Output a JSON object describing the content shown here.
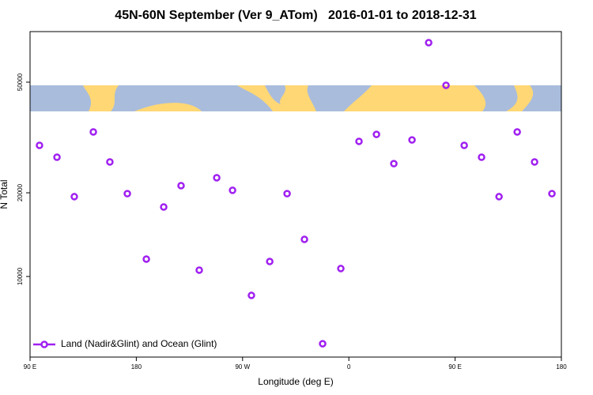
{
  "chart_data": {
    "type": "scatter",
    "title": "45N-60N September (Ver 9_ATom)   2016-01-01 to 2018-12-31",
    "x_label": "Longitude (deg E)",
    "y_label": "N Total",
    "y_log": true,
    "legend": "bottom left",
    "xlim": [
      90,
      540
    ],
    "ylim": [
      5130,
      76000
    ],
    "xticks": [
      {
        "value": 90,
        "label": "90 E"
      },
      {
        "value": 180,
        "label": "180"
      },
      {
        "value": 270,
        "label": "90 W"
      },
      {
        "value": 360,
        "label": "0"
      },
      {
        "value": 450,
        "label": "90 E"
      },
      {
        "value": 540,
        "label": "180"
      }
    ],
    "yticks": [
      10000,
      20000,
      50000
    ],
    "series": [
      {
        "name": "Land (Nadir&Glint) and Ocean (Glint)",
        "color": "#a020f0",
        "x": [
          98,
          112.8,
          127.5,
          143.6,
          157.6,
          172.4,
          188.5,
          203.2,
          217.9,
          233.3,
          248.1,
          261.5,
          277.5,
          293,
          307.7,
          322.4,
          337.8,
          353.2,
          368.6,
          383.4,
          398.1,
          413.5,
          427.6,
          442.3,
          457.7,
          472.4,
          487.2,
          502.6,
          517.3,
          532
        ],
        "values": [
          29620,
          26850,
          19370,
          33110,
          25820,
          19860,
          11550,
          17780,
          21220,
          10540,
          22650,
          20420,
          8550,
          11320,
          19860,
          13600,
          5730,
          10680,
          30620,
          32440,
          25460,
          30980,
          69340,
          48700,
          29620,
          26850,
          19370,
          33110,
          25820,
          19860
        ]
      }
    ]
  }
}
